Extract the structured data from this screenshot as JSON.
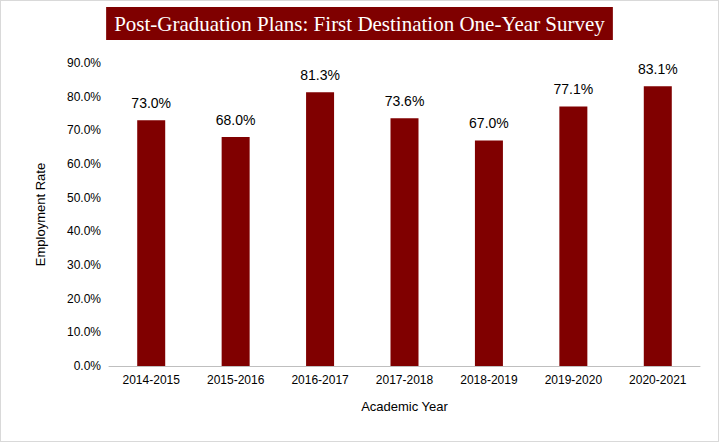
{
  "chart_data": {
    "type": "bar",
    "title": "Post-Graduation Plans: First Destination One-Year Survey",
    "x_label": "Academic Year",
    "y_label": "Employment Rate",
    "categories": [
      "2014-2015",
      "2015-2016",
      "2016-2017",
      "2017-2018",
      "2018-2019",
      "2019-2020",
      "2020-2021"
    ],
    "values": [
      73.0,
      68.0,
      81.3,
      73.6,
      67.0,
      77.1,
      83.1
    ],
    "value_labels": [
      "73.0%",
      "68.0%",
      "81.3%",
      "73.6%",
      "67.0%",
      "77.1%",
      "83.1%"
    ],
    "color": "#800000",
    "ylim": [
      0,
      90
    ],
    "yticks": [
      {
        "value": 0,
        "label": "0.0%"
      },
      {
        "value": 10,
        "label": "10.0%"
      },
      {
        "value": 20,
        "label": "20.0%"
      },
      {
        "value": 30,
        "label": "30.0%"
      },
      {
        "value": 40,
        "label": "40.0%"
      },
      {
        "value": 50,
        "label": "50.0%"
      },
      {
        "value": 60,
        "label": "60.0%"
      },
      {
        "value": 70,
        "label": "70.0%"
      },
      {
        "value": 80,
        "label": "80.0%"
      },
      {
        "value": 90,
        "label": "90.0%"
      }
    ],
    "grid": false,
    "data_labels": true
  }
}
